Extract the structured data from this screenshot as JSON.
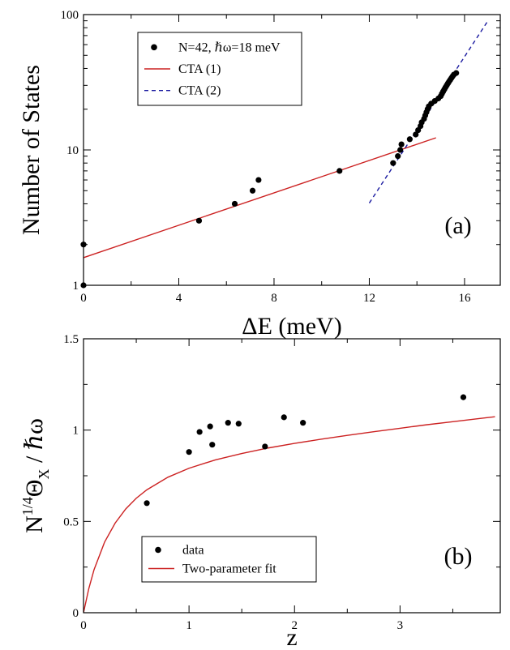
{
  "colors": {
    "fit_red": "#cc2222",
    "fit_blue": "#1a1aa0",
    "points": "#000000",
    "axes": "#000000"
  },
  "chart_data": [
    {
      "type": "scatter",
      "panel_label": "(a)",
      "xlabel": "ΔE (meV)",
      "ylabel": "Number of States",
      "xlim": [
        0,
        17.5
      ],
      "ylim": [
        1,
        100
      ],
      "yscale": "log",
      "xticks": [
        0,
        4,
        8,
        12,
        16
      ],
      "xtick_labels": [
        "0",
        "4",
        "8",
        "12",
        "16"
      ],
      "yticks": [
        1,
        10,
        100
      ],
      "ytick_labels": [
        "1",
        "10",
        "100"
      ],
      "grid": false,
      "legend_position": "top-left",
      "series": [
        {
          "name": "N=42, ℏω=18 meV",
          "kind": "markers",
          "x": [
            0,
            0,
            4.85,
            6.35,
            7.1,
            7.35,
            10.75,
            13.0,
            13.2,
            13.3,
            13.35,
            13.7,
            13.95,
            14.05,
            14.15,
            14.2,
            14.3,
            14.35,
            14.4,
            14.45,
            14.5,
            14.6,
            14.75,
            14.9,
            15.0,
            15.05,
            15.1,
            15.15,
            15.2,
            15.25,
            15.3,
            15.35,
            15.4,
            15.45,
            15.5,
            15.55,
            15.65
          ],
          "y": [
            2,
            1,
            3,
            4,
            5,
            6,
            7,
            8,
            9,
            10,
            11,
            12,
            13,
            14,
            15,
            16,
            17,
            18,
            19,
            20,
            21,
            22,
            23,
            24,
            25,
            26,
            27,
            28,
            29,
            30,
            31,
            32,
            33,
            34,
            35,
            36,
            37
          ]
        },
        {
          "name": "CTA (1)",
          "kind": "line",
          "style": "solid",
          "x": [
            0,
            14.8
          ],
          "y": [
            1.6,
            12.3
          ]
        },
        {
          "name": "CTA (2)",
          "kind": "line",
          "style": "dashed",
          "x": [
            12.0,
            17.0
          ],
          "y": [
            4.05,
            91.0
          ]
        }
      ]
    },
    {
      "type": "scatter",
      "panel_label": "(b)",
      "xlabel": "z",
      "ylabel": "N^1/4 Θ_X / ℏω",
      "ylabel_parts": {
        "base": "N",
        "sup": "1/4",
        "theta": "Θ",
        "sub": "X",
        "tail": " / ℏω"
      },
      "xlim": [
        0,
        3.95
      ],
      "ylim": [
        0,
        1.5
      ],
      "yscale": "linear",
      "xticks": [
        0,
        1,
        2,
        3
      ],
      "xtick_labels": [
        "0",
        "1",
        "2",
        "3"
      ],
      "yticks": [
        0,
        0.5,
        1,
        1.5
      ],
      "ytick_labels": [
        "0",
        "0.5",
        "1",
        "1.5"
      ],
      "grid": false,
      "legend_position": "bottom-left",
      "series": [
        {
          "name": "data",
          "kind": "markers",
          "x": [
            0.6,
            1.0,
            1.1,
            1.2,
            1.22,
            1.37,
            1.47,
            1.72,
            1.9,
            2.08,
            3.6
          ],
          "y": [
            0.6,
            0.88,
            0.99,
            1.02,
            0.92,
            1.04,
            1.035,
            0.91,
            1.07,
            1.04,
            1.18
          ]
        },
        {
          "name": "Two-parameter fit",
          "kind": "line",
          "style": "solid",
          "x": [
            0,
            0.05,
            0.1,
            0.2,
            0.3,
            0.4,
            0.5,
            0.6,
            0.8,
            1.0,
            1.25,
            1.5,
            1.75,
            2.0,
            2.25,
            2.5,
            2.75,
            3.0,
            3.25,
            3.5,
            3.75,
            3.9
          ],
          "y": [
            0,
            0.132,
            0.236,
            0.387,
            0.491,
            0.568,
            0.627,
            0.673,
            0.742,
            0.791,
            0.837,
            0.872,
            0.902,
            0.927,
            0.95,
            0.971,
            0.991,
            1.01,
            1.029,
            1.046,
            1.063,
            1.073
          ]
        }
      ]
    }
  ]
}
